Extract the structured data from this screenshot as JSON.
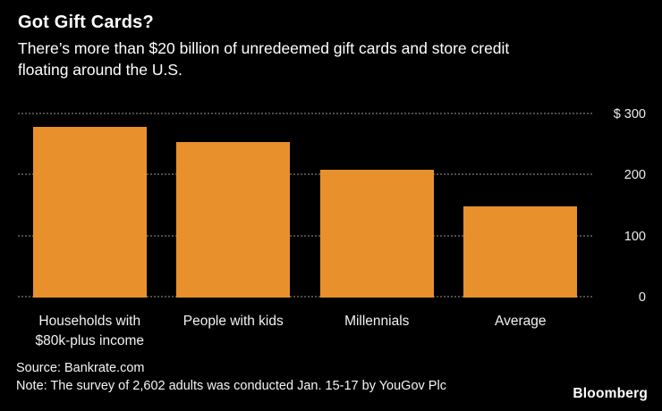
{
  "header": {
    "title": "Got Gift Cards?",
    "subtitle_line1": "There’s more than $20 billion of unredeemed gift cards and store credit",
    "subtitle_line2": "floating around the U.S."
  },
  "chart_data": {
    "type": "bar",
    "title": "Got Gift Cards?",
    "subtitle": "There’s more than $20 billion of unredeemed gift cards and store credit floating around the U.S.",
    "categories": [
      "Households with $80k-plus income",
      "People with kids",
      "Millennials",
      "Average"
    ],
    "category_labels": [
      [
        "Households with",
        "$80k-plus income"
      ],
      [
        "People with kids"
      ],
      [
        "Millennials"
      ],
      [
        "Average"
      ]
    ],
    "values": [
      280,
      255,
      210,
      150
    ],
    "xlabel": "",
    "ylabel": "",
    "ylim": [
      0,
      300
    ],
    "yticks": [
      {
        "label": "$ 300",
        "value": 300
      },
      {
        "label": "200",
        "value": 200
      },
      {
        "label": "100",
        "value": 100
      },
      {
        "label": "0",
        "value": 0
      }
    ],
    "bar_color": "#E8912C",
    "grid": "horizontal dotted",
    "legend": "none",
    "y_axis_position": "right"
  },
  "footer": {
    "source": "Source: Bankrate.com",
    "note": "Note: The survey of 2,602 adults was conducted Jan. 15-17 by YouGov Plc",
    "brand": "Bloomberg"
  }
}
